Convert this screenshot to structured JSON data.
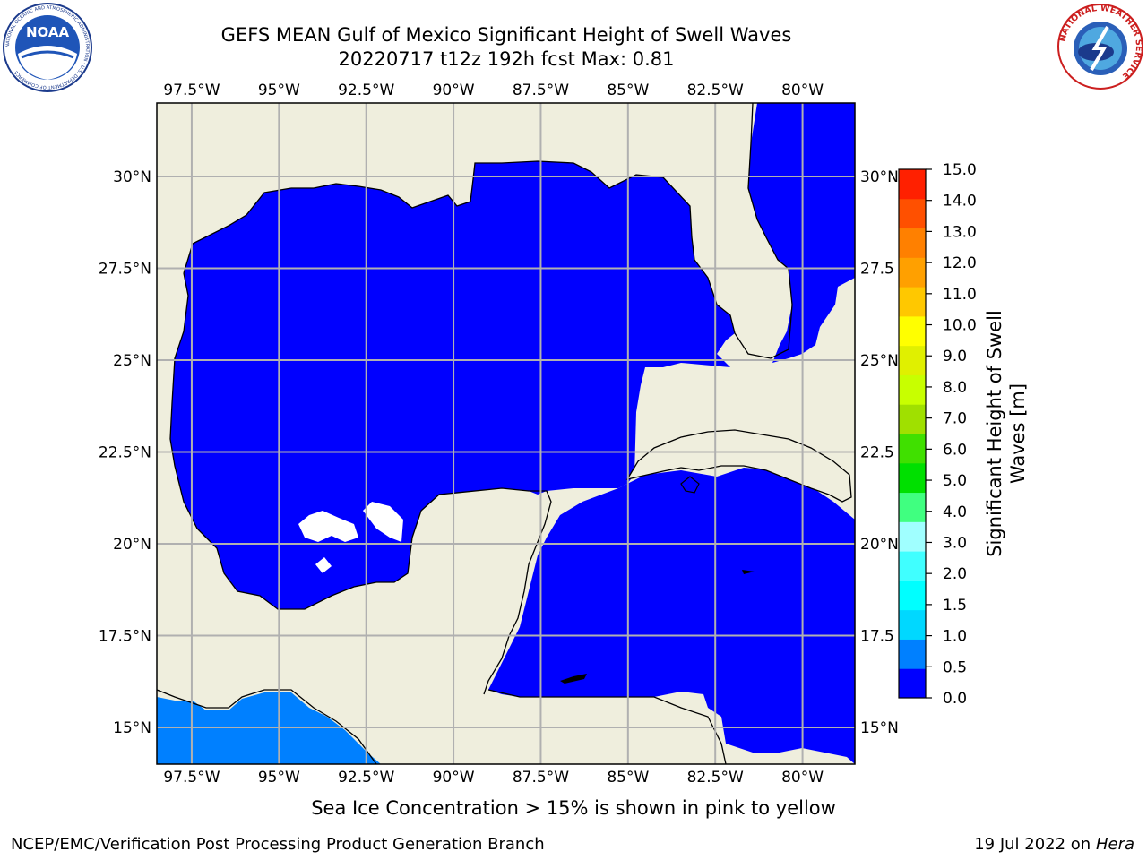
{
  "title_line1": "GEFS MEAN Gulf of Mexico Significant Height of Swell Waves",
  "title_line2": "20220717 t12z 192h fcst   Max: 0.81",
  "logos": {
    "left": {
      "name": "noaa-logo",
      "text": "NOAA",
      "ring_text": "NATIONAL OCEANIC AND ATMOSPHERIC ADMINISTRATION · U.S. DEPARTMENT OF COMMERCE"
    },
    "right": {
      "name": "national-weather-service-logo",
      "ring_text": "NATIONAL WEATHER SERVICE"
    }
  },
  "map": {
    "lon_range": [
      -98.5,
      -78.5
    ],
    "lat_range": [
      14,
      32
    ],
    "lon_ticks": [
      {
        "value": -97.5,
        "label": "97.5°W"
      },
      {
        "value": -95,
        "label": "95°W"
      },
      {
        "value": -92.5,
        "label": "92.5°W"
      },
      {
        "value": -90,
        "label": "90°W"
      },
      {
        "value": -87.5,
        "label": "87.5°W"
      },
      {
        "value": -85,
        "label": "85°W"
      },
      {
        "value": -82.5,
        "label": "82.5°W"
      },
      {
        "value": -80,
        "label": "80°W"
      }
    ],
    "lat_ticks_left": [
      {
        "value": 30,
        "label": "30°N"
      },
      {
        "value": 27.5,
        "label": "27.5°N"
      },
      {
        "value": 25,
        "label": "25°N"
      },
      {
        "value": 22.5,
        "label": "22.5°N"
      },
      {
        "value": 20,
        "label": "20°N"
      },
      {
        "value": 17.5,
        "label": "17.5°N"
      },
      {
        "value": 15,
        "label": "15°N"
      }
    ],
    "lat_ticks_right": [
      {
        "value": 30,
        "label": "30°N"
      },
      {
        "value": 27.5,
        "label": "27.5"
      },
      {
        "value": 25,
        "label": "25°N"
      },
      {
        "value": 22.5,
        "label": "22.5"
      },
      {
        "value": 20,
        "label": "20°N"
      },
      {
        "value": 17.5,
        "label": "17.5"
      },
      {
        "value": 15,
        "label": "15°N"
      }
    ],
    "colors": {
      "land": "#efeedd",
      "no_data": "#ffffff",
      "grid": "#b0b0b0",
      "coast": "#000000"
    }
  },
  "colorbar": {
    "label": "Significant Height of Swell\nWaves [m]",
    "levels": [
      0.0,
      0.5,
      1.0,
      1.5,
      2.0,
      3.0,
      4.0,
      5.0,
      6.0,
      7.0,
      8.0,
      9.0,
      10.0,
      11.0,
      12.0,
      13.0,
      14.0,
      15.0
    ],
    "tick_labels": [
      "0.0",
      "0.5",
      "1.0",
      "1.5",
      "2.0",
      "3.0",
      "4.0",
      "5.0",
      "6.0",
      "7.0",
      "8.0",
      "9.0",
      "10.0",
      "11.0",
      "12.0",
      "13.0",
      "14.0",
      "15.0"
    ],
    "colors": [
      "#0000ff",
      "#0080ff",
      "#00d8ff",
      "#00ffff",
      "#40ffff",
      "#a0ffff",
      "#40ff80",
      "#00e000",
      "#40e000",
      "#a0e000",
      "#c8ff00",
      "#e0f000",
      "#ffff00",
      "#ffc800",
      "#ffa000",
      "#ff8000",
      "#ff5000",
      "#ff2000"
    ]
  },
  "chart_data": {
    "type": "heatmap",
    "variable": "Significant Height of Swell Waves [m]",
    "max": 0.81,
    "regions": [
      {
        "area": "Gulf of Mexico and Caribbean",
        "range_m": [
          0.0,
          0.5
        ]
      },
      {
        "area": "Pacific coast south of Mexico",
        "range_m": [
          0.5,
          1.0
        ]
      }
    ]
  },
  "subtitle": "Sea Ice Concentration > 15% is shown in pink to yellow",
  "footer_left": "NCEP/EMC/Verification Post Processing Product Generation Branch",
  "footer_right_prefix": "19 Jul 2022 on ",
  "footer_right_host": "Hera"
}
